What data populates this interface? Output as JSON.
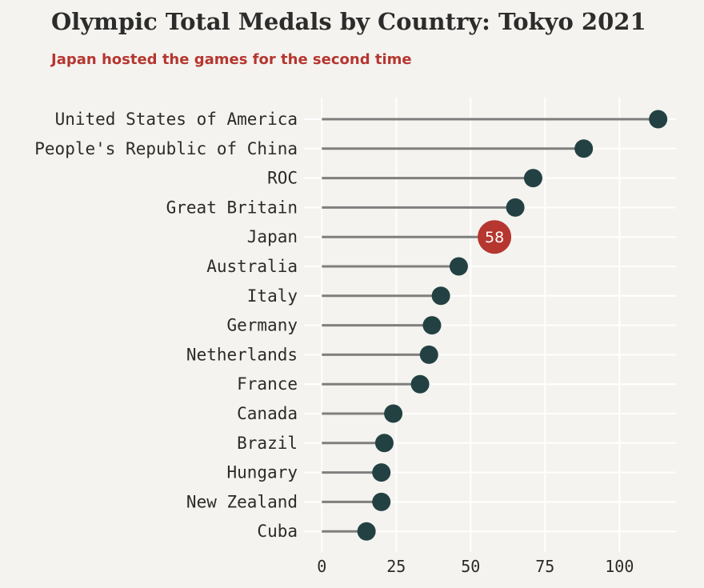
{
  "chart_data": {
    "type": "lollipop",
    "title": "Olympic Total Medals by Country: Tokyo 2021",
    "subtitle": "Japan hosted the games for the second time",
    "categories": [
      "United States of America",
      "People's Republic of China",
      "ROC",
      "Great Britain",
      "Japan",
      "Australia",
      "Italy",
      "Germany",
      "Netherlands",
      "France",
      "Canada",
      "Brazil",
      "Hungary",
      "New Zealand",
      "Cuba"
    ],
    "values": [
      113,
      88,
      71,
      65,
      58,
      46,
      40,
      37,
      36,
      33,
      24,
      21,
      20,
      20,
      15
    ],
    "highlight": {
      "category": "Japan",
      "label": "58"
    },
    "xticks": [
      "0",
      "25",
      "50",
      "75",
      "100"
    ],
    "xlim": [
      -6,
      119
    ],
    "grid": true,
    "xlabel": "",
    "ylabel": ""
  },
  "colors": {
    "background": "#f4f3ef",
    "dot": "#234143",
    "highlight": "#b63630",
    "stem": "#7f7f7f",
    "grid": "#ffffff",
    "title": "#2c2c2c",
    "subtitle": "#b63630"
  }
}
